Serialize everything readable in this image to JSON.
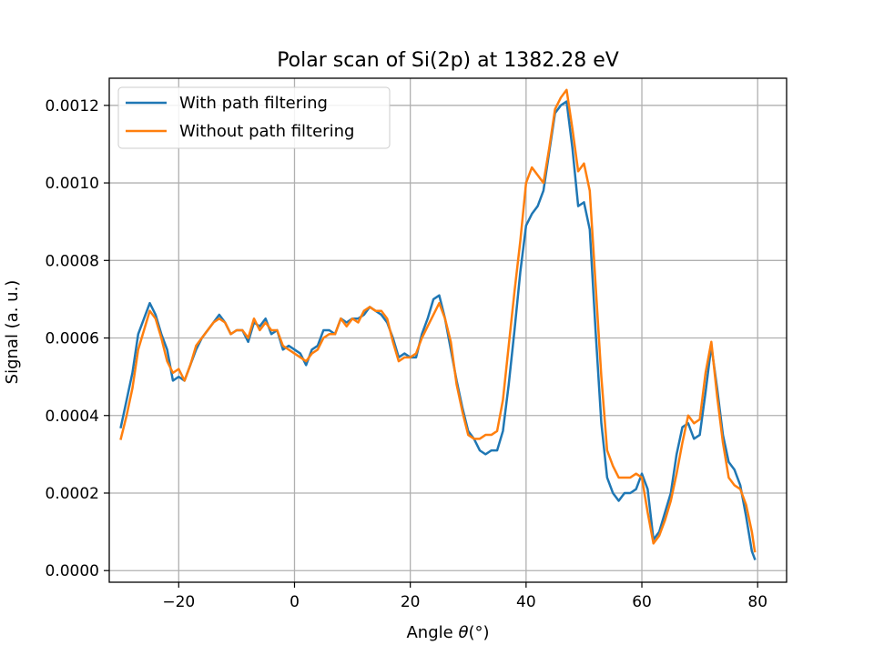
{
  "chart_data": {
    "type": "line",
    "title": "Polar scan of Si(2p) at 1382.28 eV",
    "xlabel_prefix": "Angle ",
    "xlabel_symbol": "θ",
    "xlabel_suffix": "(°)",
    "ylabel": "Signal (a. u.)",
    "xlim": [
      -32,
      85
    ],
    "ylim": [
      -3e-05,
      0.00127
    ],
    "grid": true,
    "legend_position": "top-left",
    "x_ticks": [
      -20,
      0,
      20,
      40,
      60,
      80
    ],
    "x_tick_labels": [
      "−20",
      "0",
      "20",
      "40",
      "60",
      "80"
    ],
    "y_ticks": [
      0.0,
      0.0002,
      0.0004,
      0.0006,
      0.0008,
      0.001,
      0.0012
    ],
    "y_tick_labels": [
      "0.0000",
      "0.0002",
      "0.0004",
      "0.0006",
      "0.0008",
      "0.0010",
      "0.0012"
    ],
    "series": [
      {
        "name": "With path filtering",
        "color": "#1f77b4",
        "x": [
          -30,
          -29,
          -28,
          -27,
          -26,
          -25,
          -24,
          -23,
          -22,
          -21,
          -20,
          -19,
          -18,
          -17,
          -16,
          -15,
          -14,
          -13,
          -12,
          -11,
          -10,
          -9,
          -8,
          -7,
          -6,
          -5,
          -4,
          -3,
          -2,
          -1,
          0,
          1,
          2,
          3,
          4,
          5,
          6,
          7,
          8,
          9,
          10,
          11,
          12,
          13,
          14,
          15,
          16,
          17,
          18,
          19,
          20,
          21,
          22,
          23,
          24,
          25,
          26,
          27,
          28,
          29,
          30,
          31,
          32,
          33,
          34,
          35,
          36,
          37,
          38,
          39,
          40,
          41,
          42,
          43,
          44,
          45,
          46,
          47,
          48,
          49,
          50,
          51,
          52,
          53,
          54,
          55,
          56,
          57,
          58,
          59,
          60,
          61,
          62,
          63,
          64,
          65,
          66,
          67,
          68,
          69,
          70,
          71,
          72,
          73,
          74,
          75,
          76,
          77,
          78,
          79,
          79.5
        ],
        "y": [
          0.00037,
          0.00044,
          0.00051,
          0.00061,
          0.00065,
          0.00069,
          0.00066,
          0.00061,
          0.00057,
          0.00049,
          0.0005,
          0.00049,
          0.00053,
          0.00057,
          0.0006,
          0.00062,
          0.00064,
          0.00066,
          0.00064,
          0.00061,
          0.00062,
          0.00062,
          0.00059,
          0.00064,
          0.00063,
          0.00065,
          0.00061,
          0.00062,
          0.00057,
          0.00058,
          0.00057,
          0.00056,
          0.00053,
          0.00057,
          0.00058,
          0.00062,
          0.00062,
          0.00061,
          0.00065,
          0.00064,
          0.00065,
          0.00065,
          0.00066,
          0.00068,
          0.00067,
          0.00066,
          0.00064,
          0.0006,
          0.00055,
          0.00056,
          0.00055,
          0.00055,
          0.00061,
          0.00065,
          0.0007,
          0.00071,
          0.00065,
          0.00057,
          0.00049,
          0.00042,
          0.00036,
          0.00034,
          0.00031,
          0.0003,
          0.00031,
          0.00031,
          0.00036,
          0.00048,
          0.00062,
          0.00077,
          0.00089,
          0.00092,
          0.00094,
          0.00098,
          0.00108,
          0.00118,
          0.0012,
          0.00121,
          0.00109,
          0.00094,
          0.00095,
          0.00088,
          0.00062,
          0.00038,
          0.00024,
          0.0002,
          0.00018,
          0.0002,
          0.0002,
          0.00021,
          0.00025,
          0.00021,
          8e-05,
          0.0001,
          0.00015,
          0.0002,
          0.0003,
          0.00037,
          0.00038,
          0.00034,
          0.00035,
          0.00046,
          0.00058,
          0.00047,
          0.00035,
          0.00028,
          0.00026,
          0.00022,
          0.00014,
          5e-05,
          3e-05
        ]
      },
      {
        "name": "Without path filtering",
        "color": "#ff7f0e",
        "x": [
          -30,
          -29,
          -28,
          -27,
          -26,
          -25,
          -24,
          -23,
          -22,
          -21,
          -20,
          -19,
          -18,
          -17,
          -16,
          -15,
          -14,
          -13,
          -12,
          -11,
          -10,
          -9,
          -8,
          -7,
          -6,
          -5,
          -4,
          -3,
          -2,
          -1,
          0,
          1,
          2,
          3,
          4,
          5,
          6,
          7,
          8,
          9,
          10,
          11,
          12,
          13,
          14,
          15,
          16,
          17,
          18,
          19,
          20,
          21,
          22,
          23,
          24,
          25,
          26,
          27,
          28,
          29,
          30,
          31,
          32,
          33,
          34,
          35,
          36,
          37,
          38,
          39,
          40,
          41,
          42,
          43,
          44,
          45,
          46,
          47,
          48,
          49,
          50,
          51,
          52,
          53,
          54,
          55,
          56,
          57,
          58,
          59,
          60,
          61,
          62,
          63,
          64,
          65,
          66,
          67,
          68,
          69,
          70,
          71,
          72,
          73,
          74,
          75,
          76,
          77,
          78,
          79,
          79.5
        ],
        "y": [
          0.00034,
          0.0004,
          0.00047,
          0.00057,
          0.00062,
          0.00067,
          0.00065,
          0.0006,
          0.00054,
          0.00051,
          0.00052,
          0.00049,
          0.00053,
          0.00058,
          0.0006,
          0.00062,
          0.00064,
          0.00065,
          0.00064,
          0.00061,
          0.00062,
          0.00062,
          0.0006,
          0.00065,
          0.00062,
          0.00064,
          0.00062,
          0.00062,
          0.00058,
          0.00057,
          0.00056,
          0.00055,
          0.00054,
          0.00056,
          0.00057,
          0.0006,
          0.00061,
          0.00061,
          0.00065,
          0.00063,
          0.00065,
          0.00064,
          0.00067,
          0.00068,
          0.00067,
          0.00067,
          0.00065,
          0.00059,
          0.00054,
          0.00055,
          0.00055,
          0.00056,
          0.0006,
          0.00063,
          0.00066,
          0.00069,
          0.00065,
          0.00059,
          0.00048,
          0.00041,
          0.00035,
          0.00034,
          0.00034,
          0.00035,
          0.00035,
          0.00036,
          0.00044,
          0.00058,
          0.00072,
          0.00085,
          0.001,
          0.00104,
          0.00102,
          0.001,
          0.00109,
          0.00119,
          0.00122,
          0.00124,
          0.00114,
          0.00103,
          0.00105,
          0.00098,
          0.00074,
          0.0005,
          0.00031,
          0.00027,
          0.00024,
          0.00024,
          0.00024,
          0.00025,
          0.00024,
          0.00015,
          7e-05,
          9e-05,
          0.00013,
          0.00018,
          0.00025,
          0.00033,
          0.0004,
          0.00038,
          0.00039,
          0.00051,
          0.00059,
          0.00045,
          0.00033,
          0.00024,
          0.00022,
          0.00021,
          0.00017,
          0.0001,
          5e-05
        ]
      }
    ]
  }
}
